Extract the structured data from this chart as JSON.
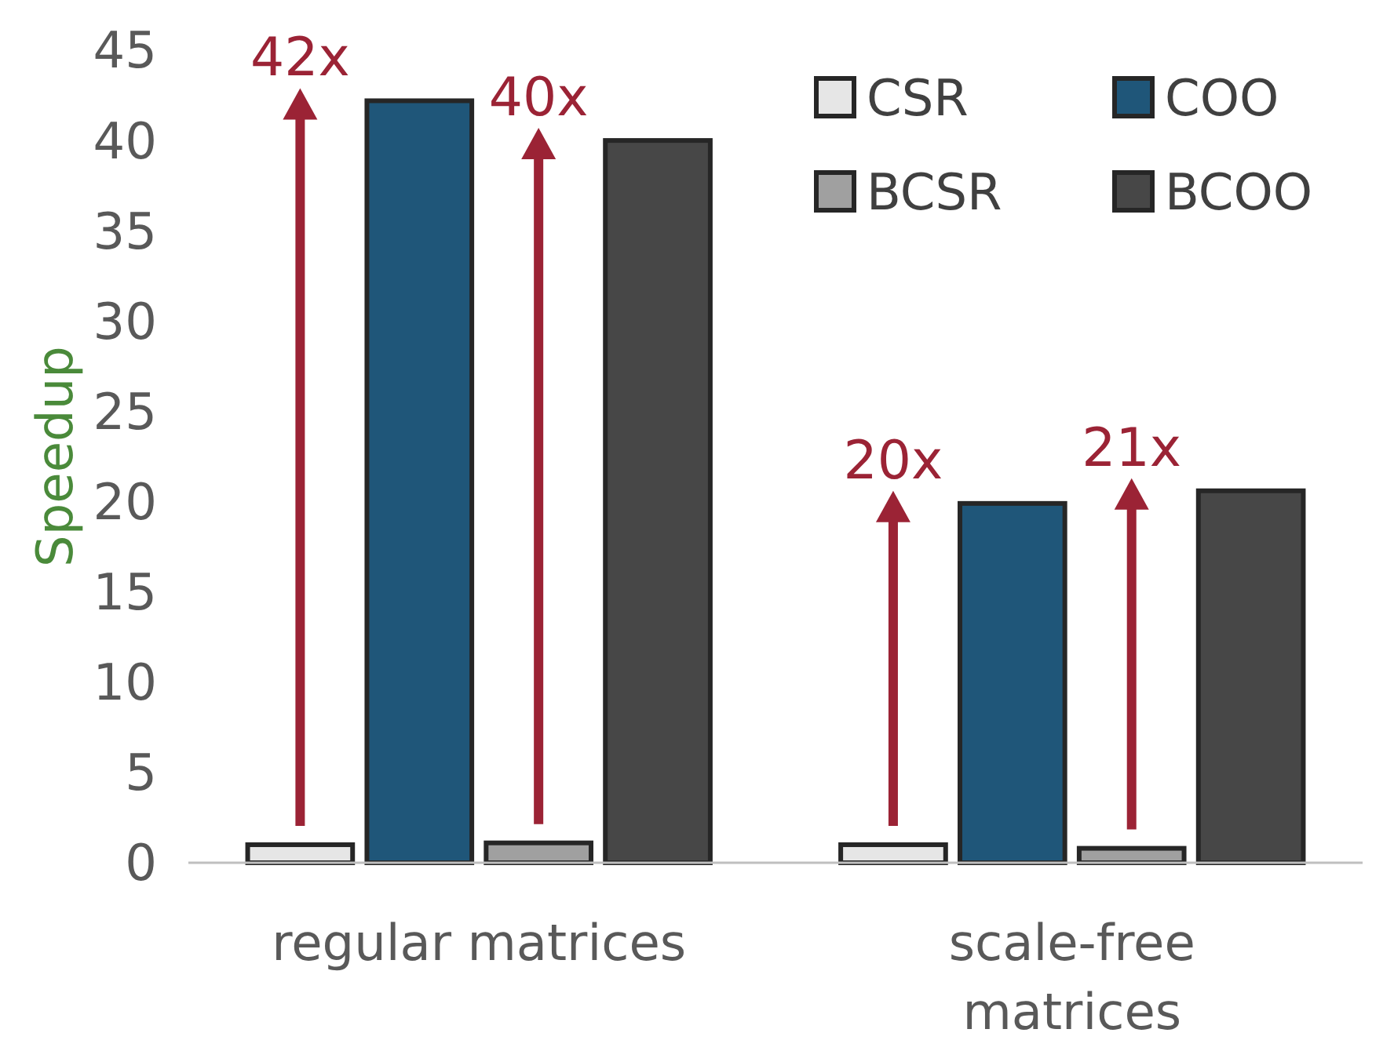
{
  "chart_data": {
    "type": "bar",
    "ylabel": "Speedup",
    "categories": [
      "regular matrices",
      "scale-free matrices"
    ],
    "series": [
      {
        "name": "CSR",
        "color": "#e6e6e6",
        "values": [
          1,
          1
        ]
      },
      {
        "name": "COO",
        "color": "#1f5679",
        "values": [
          42.2,
          19.9
        ]
      },
      {
        "name": "BCSR",
        "color": "#a0a0a0",
        "values": [
          1.1,
          0.8
        ]
      },
      {
        "name": "BCOO",
        "color": "#474747",
        "values": [
          40,
          20.6
        ]
      }
    ],
    "ylim": [
      0,
      45
    ],
    "yticks": [
      0,
      5,
      10,
      15,
      20,
      25,
      30,
      35,
      40,
      45
    ],
    "grid": false,
    "legend": "top right",
    "annotations": [
      "42x",
      "40x",
      "20x",
      "21x"
    ]
  }
}
